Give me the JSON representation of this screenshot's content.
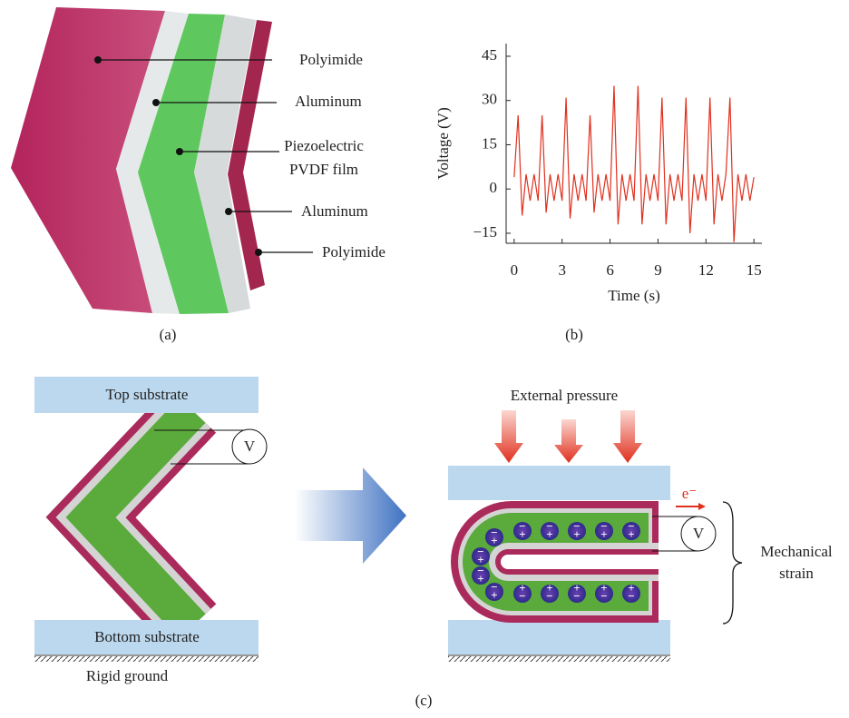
{
  "panel_a": {
    "labels": [
      [
        "Polyimide"
      ],
      [
        "Aluminum"
      ],
      [
        "Piezoelectric",
        "PVDF film"
      ],
      [
        "Aluminum"
      ],
      [
        "Polyimide"
      ]
    ],
    "caption": "(a)"
  },
  "chart_data": {
    "type": "line",
    "y_label": "Voltage (V)",
    "x_label": "Time (s)",
    "color": "#e0301e",
    "xlim": [
      -0.5,
      15.5
    ],
    "xticks": [
      0,
      3,
      6,
      9,
      12,
      15
    ],
    "ylim": [
      -18.4,
      49.3
    ],
    "yticks": [
      {
        "value": -15,
        "label": "−15"
      },
      0,
      15,
      30,
      45
    ],
    "x": [
      0,
      0.25,
      0.5,
      0.75,
      1,
      1.25,
      1.5,
      1.75,
      2,
      2.25,
      2.5,
      2.75,
      3,
      3.25,
      3.5,
      3.75,
      4,
      4.25,
      4.5,
      4.75,
      5,
      5.25,
      5.5,
      5.75,
      6,
      6.25,
      6.5,
      6.75,
      7,
      7.25,
      7.5,
      7.75,
      8,
      8.25,
      8.5,
      8.75,
      9,
      9.25,
      9.5,
      9.75,
      10,
      10.25,
      10.5,
      10.75,
      11,
      11.25,
      11.5,
      11.75,
      12,
      12.25,
      12.5,
      12.75,
      13,
      13.25,
      13.5,
      13.75,
      14,
      14.25,
      14.5,
      14.75,
      15
    ],
    "values": [
      4,
      25,
      -9,
      5,
      -4,
      5,
      -4,
      25,
      -8,
      5,
      -4,
      5,
      -4,
      31,
      -10,
      5,
      -4,
      5,
      -4,
      25,
      -8,
      5,
      -4,
      5,
      -4,
      35,
      -12,
      5,
      -4,
      5,
      -4,
      35,
      -12,
      5,
      -4,
      5,
      -4,
      31,
      -12,
      5,
      -4,
      5,
      -4,
      31,
      -15,
      5,
      -4,
      5,
      -4,
      31,
      -12,
      5,
      -4,
      5,
      31,
      -18,
      5,
      -4,
      5,
      -4,
      4
    ]
  },
  "panel_b": {
    "caption": "(b)"
  },
  "panel_c": {
    "top_substrate": "Top substrate",
    "bottom_substrate": "Bottom substrate",
    "rigid_ground": "Rigid ground",
    "voltmeter": "V",
    "external_pressure": "External pressure",
    "electron": "e⁻",
    "mechanical_strain": [
      "Mechanical",
      "strain"
    ],
    "positive": "+",
    "negative": "−",
    "caption": "(c)"
  }
}
